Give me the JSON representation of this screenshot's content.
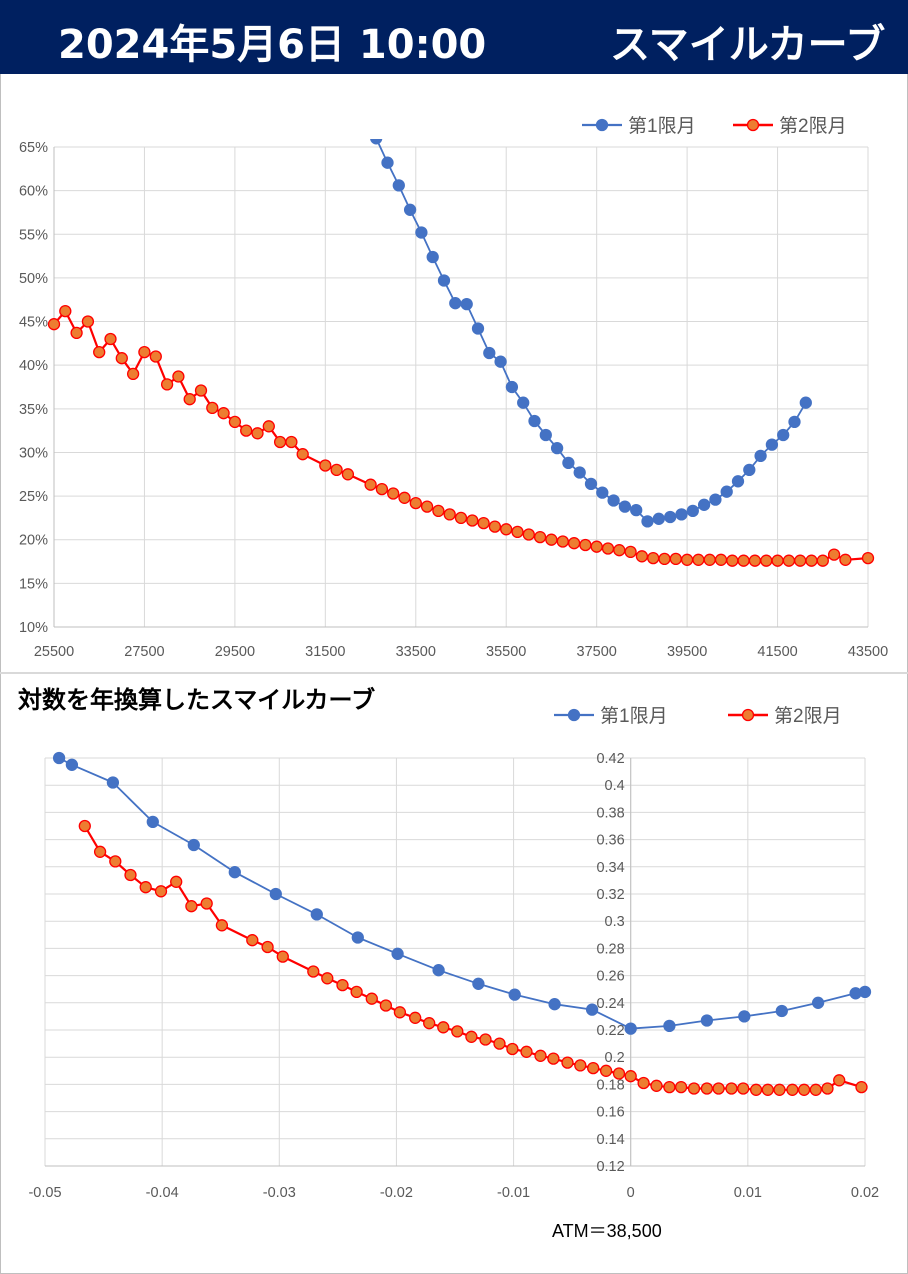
{
  "header": {
    "date": "2024年5月6日 10:00",
    "title": "スマイルカーブ"
  },
  "chart2_title": "対数を年換算したスマイルカーブ",
  "atm_label": "ATM＝38,500",
  "colors": {
    "header_bg": "#002060",
    "series1": "#4472c4",
    "series2": "#ff0000",
    "series2_fill": "#ed7d31"
  },
  "chart_data": [
    {
      "type": "line",
      "title": "",
      "xlabel": "",
      "ylabel": "",
      "xlim": [
        25500,
        43500
      ],
      "ylim": [
        0.1,
        0.65
      ],
      "xticks": [
        25500,
        27500,
        29500,
        31500,
        33500,
        35500,
        37500,
        39500,
        41500,
        43500
      ],
      "yticks": [
        0.1,
        0.15,
        0.2,
        0.25,
        0.3,
        0.35,
        0.4,
        0.45,
        0.5,
        0.55,
        0.6,
        0.65
      ],
      "ytick_labels": [
        "10%",
        "15%",
        "20%",
        "25%",
        "30%",
        "35%",
        "40%",
        "45%",
        "50%",
        "55%",
        "60%",
        "65%"
      ],
      "grid": true,
      "legend": "top-right",
      "series": [
        {
          "name": "第1限月",
          "x": [
            32625,
            32875,
            33125,
            33375,
            33625,
            33875,
            34125,
            34375,
            34625,
            34875,
            35125,
            35375,
            35625,
            35875,
            36125,
            36375,
            36625,
            36875,
            37125,
            37375,
            37625,
            37875,
            38125,
            38375,
            38625,
            38875,
            39125,
            39375,
            39625,
            39875,
            40125,
            40375,
            40625,
            40875,
            41125,
            41375,
            41625,
            41875,
            42125
          ],
          "y": [
            0.66,
            0.632,
            0.606,
            0.578,
            0.552,
            0.524,
            0.497,
            0.471,
            0.47,
            0.442,
            0.414,
            0.404,
            0.375,
            0.357,
            0.336,
            0.32,
            0.305,
            0.288,
            0.277,
            0.264,
            0.254,
            0.245,
            0.238,
            0.234,
            0.221,
            0.224,
            0.226,
            0.229,
            0.233,
            0.24,
            0.246,
            0.255,
            0.267,
            0.28,
            0.296,
            0.309,
            0.32,
            0.335,
            0.357
          ]
        },
        {
          "name": "第2限月",
          "x": [
            25500,
            25750,
            26000,
            26250,
            26500,
            26750,
            27000,
            27250,
            27500,
            27750,
            28000,
            28250,
            28500,
            28750,
            29000,
            29250,
            29500,
            29750,
            30000,
            30250,
            30500,
            30750,
            31000,
            31500,
            31750,
            32000,
            32500,
            32750,
            33000,
            33250,
            33500,
            33750,
            34000,
            34250,
            34500,
            34750,
            35000,
            35250,
            35500,
            35750,
            36000,
            36250,
            36500,
            36750,
            37000,
            37250,
            37500,
            37750,
            38000,
            38250,
            38500,
            38750,
            39000,
            39250,
            39500,
            39750,
            40000,
            40250,
            40500,
            40750,
            41000,
            41250,
            41500,
            41750,
            42000,
            42250,
            42500,
            42750,
            43000,
            43500
          ],
          "y": [
            0.447,
            0.462,
            0.437,
            0.45,
            0.415,
            0.43,
            0.408,
            0.39,
            0.415,
            0.41,
            0.378,
            0.387,
            0.361,
            0.371,
            0.351,
            0.345,
            0.335,
            0.325,
            0.322,
            0.33,
            0.312,
            0.312,
            0.298,
            0.285,
            0.28,
            0.275,
            0.263,
            0.258,
            0.253,
            0.248,
            0.242,
            0.238,
            0.233,
            0.229,
            0.225,
            0.222,
            0.219,
            0.215,
            0.212,
            0.209,
            0.206,
            0.203,
            0.2,
            0.198,
            0.196,
            0.194,
            0.192,
            0.19,
            0.188,
            0.186,
            0.181,
            0.179,
            0.178,
            0.178,
            0.177,
            0.177,
            0.177,
            0.177,
            0.176,
            0.176,
            0.176,
            0.176,
            0.176,
            0.176,
            0.176,
            0.176,
            0.176,
            0.183,
            0.177,
            0.179
          ]
        }
      ]
    },
    {
      "type": "line",
      "title": "対数を年換算したスマイルカーブ",
      "xlabel": "",
      "ylabel": "",
      "xlim": [
        -0.05,
        0.02
      ],
      "ylim": [
        0.12,
        0.42
      ],
      "xticks": [
        -0.05,
        -0.04,
        -0.03,
        -0.02,
        -0.01,
        0,
        0.01,
        0.02
      ],
      "xtick_labels": [
        "-0.05",
        "-0.04",
        "-0.03",
        "-0.02",
        "-0.01",
        "0",
        "0.01",
        "0.02"
      ],
      "yticks": [
        0.12,
        0.14,
        0.16,
        0.18,
        0.2,
        0.22,
        0.24,
        0.26,
        0.28,
        0.3,
        0.32,
        0.34,
        0.36,
        0.38,
        0.4,
        0.42
      ],
      "ytick_labels": [
        "0.12",
        "0.14",
        "0.16",
        "0.18",
        "0.2",
        "0.22",
        "0.24",
        "0.26",
        "0.28",
        "0.3",
        "0.32",
        "0.34",
        "0.36",
        "0.38",
        "0.4",
        "0.42"
      ],
      "grid": true,
      "legend": "top-right",
      "series": [
        {
          "name": "第1限月",
          "x": [
            -0.0488,
            -0.0477,
            -0.0442,
            -0.0408,
            -0.0373,
            -0.0338,
            -0.0303,
            -0.0268,
            -0.0233,
            -0.0199,
            -0.0164,
            -0.013,
            -0.0099,
            -0.0065,
            -0.0033,
            0.0,
            0.0033,
            0.0065,
            0.0097,
            0.0129,
            0.016,
            0.0192,
            0.02
          ],
          "y": [
            0.42,
            0.415,
            0.402,
            0.373,
            0.356,
            0.336,
            0.32,
            0.305,
            0.288,
            0.276,
            0.264,
            0.254,
            0.246,
            0.239,
            0.235,
            0.221,
            0.223,
            0.227,
            0.23,
            0.234,
            0.24,
            0.247,
            0.248
          ]
        },
        {
          "name": "第2限月",
          "x": [
            -0.0466,
            -0.0453,
            -0.044,
            -0.0427,
            -0.0414,
            -0.0401,
            -0.0388,
            -0.0375,
            -0.0362,
            -0.0349,
            -0.0323,
            -0.031,
            -0.0297,
            -0.0271,
            -0.0259,
            -0.0246,
            -0.0234,
            -0.0221,
            -0.0209,
            -0.0197,
            -0.0184,
            -0.0172,
            -0.016,
            -0.0148,
            -0.0136,
            -0.0124,
            -0.0112,
            -0.0101,
            -0.0089,
            -0.0077,
            -0.0066,
            -0.0054,
            -0.0043,
            -0.0032,
            -0.0021,
            -0.001,
            0.0,
            0.0011,
            0.0022,
            0.0033,
            0.0043,
            0.0054,
            0.0065,
            0.0075,
            0.0086,
            0.0096,
            0.0107,
            0.0117,
            0.0127,
            0.0138,
            0.0148,
            0.0158,
            0.0168,
            0.0178,
            0.0197
          ],
          "y": [
            0.37,
            0.351,
            0.344,
            0.334,
            0.325,
            0.322,
            0.329,
            0.311,
            0.313,
            0.297,
            0.286,
            0.281,
            0.274,
            0.263,
            0.258,
            0.253,
            0.248,
            0.243,
            0.238,
            0.233,
            0.229,
            0.225,
            0.222,
            0.219,
            0.215,
            0.213,
            0.21,
            0.206,
            0.204,
            0.201,
            0.199,
            0.196,
            0.194,
            0.192,
            0.19,
            0.188,
            0.186,
            0.181,
            0.179,
            0.178,
            0.178,
            0.177,
            0.177,
            0.177,
            0.177,
            0.177,
            0.176,
            0.176,
            0.176,
            0.176,
            0.176,
            0.176,
            0.177,
            0.183,
            0.178
          ]
        }
      ]
    }
  ]
}
